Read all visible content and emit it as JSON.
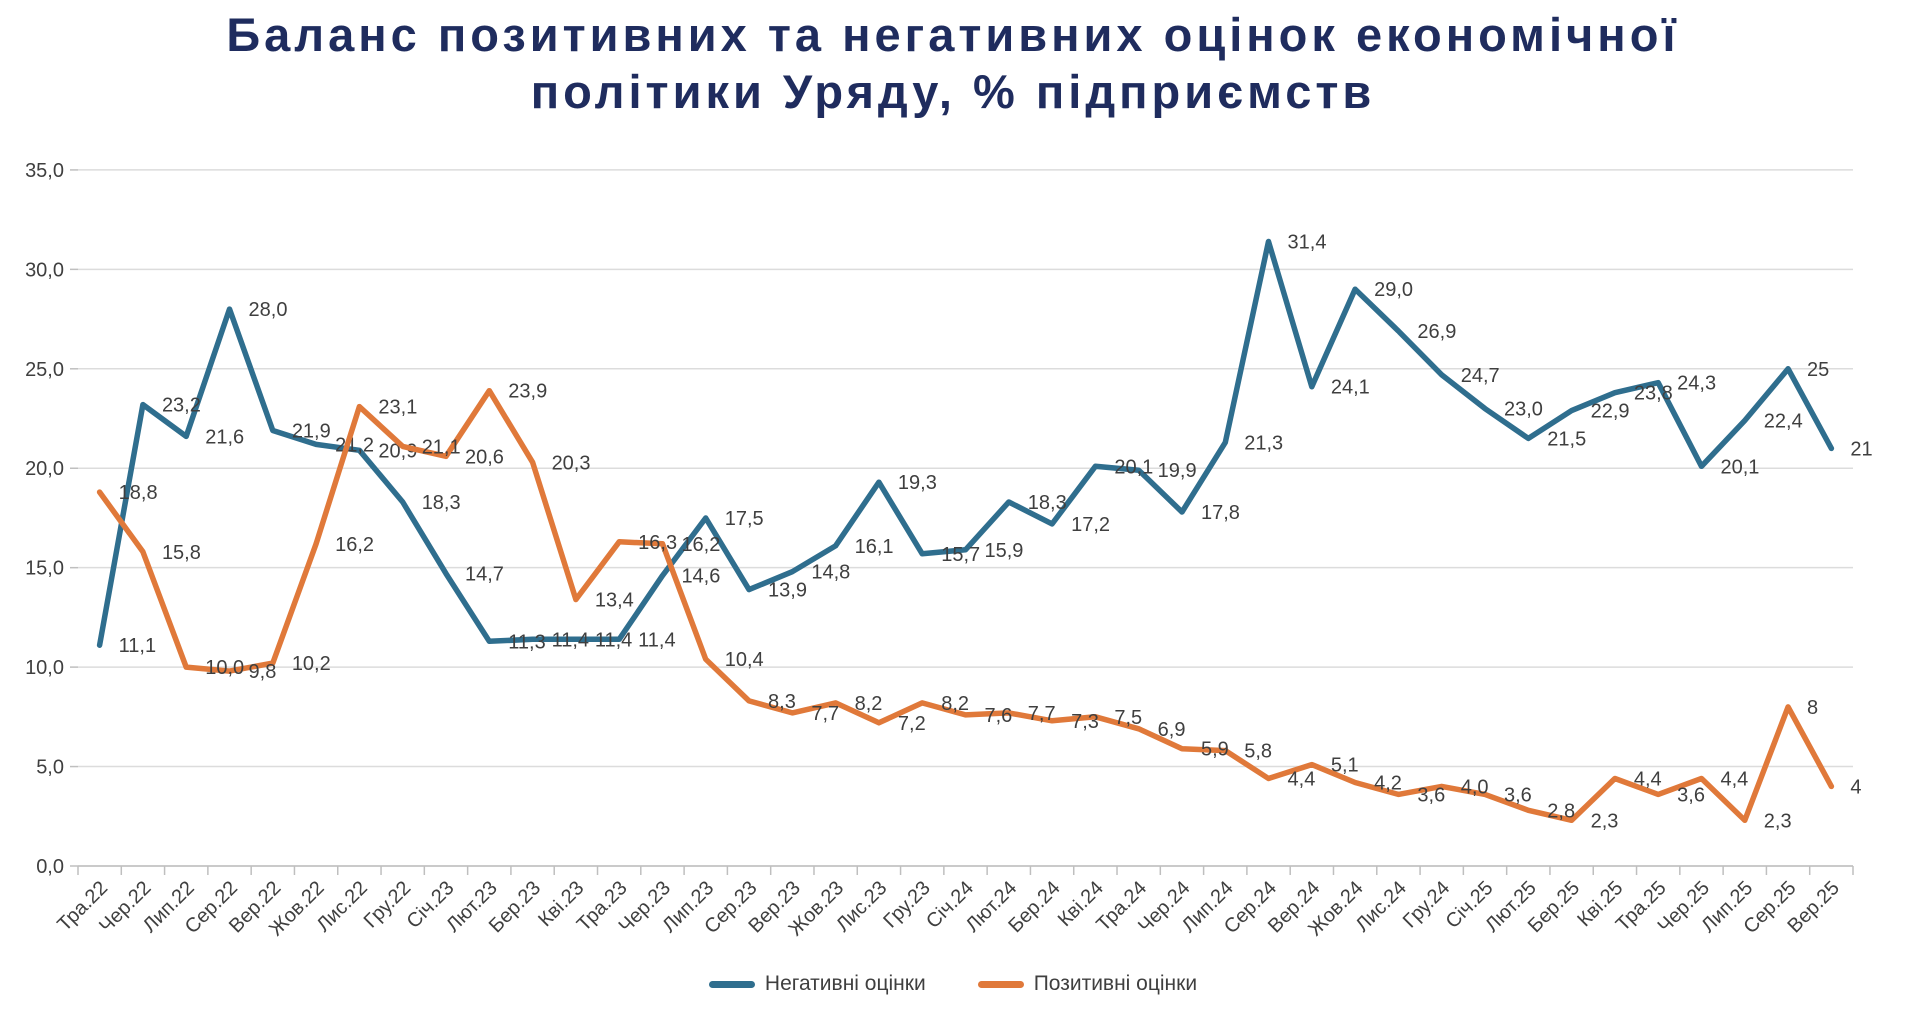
{
  "title": {
    "line1": "Баланс позитивних та негативних оцінок економічної",
    "line2": "політики Уряду, % підприємств"
  },
  "legend": [
    {
      "label": "Негативні оцінки",
      "series": "negative"
    },
    {
      "label": "Позитивні оцінки",
      "series": "positive"
    }
  ],
  "colors": {
    "negative": "#2f6e8e",
    "positive": "#e0793a",
    "title": "#1f2c5e",
    "text": "#3f3f3f",
    "grid": "#dcdcdc",
    "axis": "#bfbfbf"
  },
  "chart_data": {
    "type": "line",
    "title": "Баланс позитивних та негативних оцінок економічної політики Уряду, % підприємств",
    "categories": [
      "Тра.22",
      "Чер.22",
      "Лип.22",
      "Сер.22",
      "Вер.22",
      "Жов.22",
      "Лис.22",
      "Гру.22",
      "Січ.23",
      "Лют.23",
      "Бер.23",
      "Кві.23",
      "Тра.23",
      "Чер.23",
      "Лип.23",
      "Сер.23",
      "Вер.23",
      "Жов.23",
      "Лис.23",
      "Гру.23",
      "Січ.24",
      "Лют.24",
      "Бер.24",
      "Кві.24",
      "Тра.24",
      "Чер.24",
      "Лип.24",
      "Сер.24",
      "Вер.24",
      "Жов.24",
      "Лис.24",
      "Гру.24",
      "Січ.25",
      "Лют.25",
      "Бер.25",
      "Кві.25",
      "Тра.25",
      "Чер.25",
      "Лип.25",
      "Сер.25",
      "Вер.25"
    ],
    "series": [
      {
        "name": "Негативні оцінки",
        "color_key": "negative",
        "values": [
          11.1,
          23.2,
          21.6,
          28.0,
          21.9,
          21.2,
          20.9,
          18.3,
          14.7,
          11.3,
          11.4,
          11.4,
          11.4,
          14.6,
          17.5,
          13.9,
          14.8,
          16.1,
          19.3,
          15.7,
          15.9,
          18.3,
          17.2,
          20.1,
          19.9,
          17.8,
          21.3,
          31.4,
          24.1,
          29.0,
          26.9,
          24.7,
          23.0,
          21.5,
          22.9,
          23.8,
          24.3,
          20.1,
          22.4,
          25,
          21
        ],
        "labels": [
          "11,1",
          "23,2",
          "21,6",
          "28,0",
          "21,9",
          "21,2",
          "20,9",
          "18,3",
          "14,7",
          "11,3",
          "11,4",
          "11,4",
          "11,4",
          "14,6",
          "17,5",
          "13,9",
          "14,8",
          "16,1",
          "19,3",
          "15,7",
          "15,9",
          "18,3",
          "17,2",
          "20,1",
          "19,9",
          "17,8",
          "21,3",
          "31,4",
          "24,1",
          "29,0",
          "26,9",
          "24,7",
          "23,0",
          "21,5",
          "22,9",
          "23,8",
          "24,3",
          "20,1",
          "22,4",
          "25",
          "21"
        ]
      },
      {
        "name": "Позитивні оцінки",
        "color_key": "positive",
        "values": [
          18.8,
          15.8,
          10.0,
          9.8,
          10.2,
          16.2,
          23.1,
          21.1,
          20.6,
          23.9,
          20.3,
          13.4,
          16.3,
          16.2,
          10.4,
          8.3,
          7.7,
          8.2,
          7.2,
          8.2,
          7.6,
          7.7,
          7.3,
          7.5,
          6.9,
          5.9,
          5.8,
          4.4,
          5.1,
          4.2,
          3.6,
          4.0,
          3.6,
          2.8,
          2.3,
          4.4,
          3.6,
          4.4,
          2.3,
          8,
          4
        ],
        "labels": [
          "18,8",
          "15,8",
          "10,0",
          "9,8",
          "10,2",
          "16,2",
          "23,1",
          "21,1",
          "20,6",
          "23,9",
          "20,3",
          "13,4",
          "16,3",
          "16,2",
          "10,4",
          "8,3",
          "7,7",
          "8,2",
          "7,2",
          "8,2",
          "7,6",
          "7,7",
          "7,3",
          "7,5",
          "6,9",
          "5,9",
          "5,8",
          "4,4",
          "5,1",
          "4,2",
          "3,6",
          "4,0",
          "3,6",
          "2,8",
          "2,3",
          "4,4",
          "3,6",
          "4,4",
          "2,3",
          "8",
          "4"
        ]
      }
    ],
    "y_ticks": [
      "0,0",
      "5,0",
      "10,0",
      "15,0",
      "20,0",
      "25,0",
      "30,0",
      "35,0"
    ],
    "y_tick_values": [
      0,
      5,
      10,
      15,
      20,
      25,
      30,
      35
    ],
    "ylim": [
      0,
      35
    ],
    "grid": true,
    "legend_position": "bottom"
  }
}
